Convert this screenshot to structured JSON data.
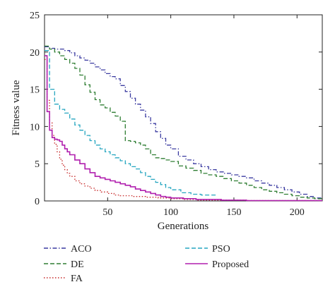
{
  "chart_data": {
    "type": "line",
    "xlabel": "Generations",
    "ylabel": "Fitness value",
    "xlim": [
      0,
      220
    ],
    "ylim": [
      0,
      25
    ],
    "xticks": [
      50,
      100,
      150,
      200
    ],
    "yticks": [
      0,
      5,
      10,
      15,
      20,
      25
    ],
    "grid": false,
    "legend_position": "below plot, two columns",
    "series": [
      {
        "name": "ACO",
        "color": "#3a3aa0",
        "dash": "dash-dot",
        "x": [
          0,
          4,
          8,
          12,
          16,
          20,
          24,
          28,
          32,
          36,
          40,
          44,
          48,
          52,
          56,
          60,
          64,
          68,
          72,
          76,
          80,
          84,
          88,
          92,
          96,
          100,
          106,
          112,
          118,
          124,
          130,
          136,
          142,
          148,
          154,
          160,
          166,
          172,
          178,
          184,
          190,
          196,
          202,
          208,
          214,
          220
        ],
        "y": [
          20.7,
          20.5,
          20.4,
          20.4,
          20.2,
          19.9,
          19.5,
          19.2,
          18.9,
          18.5,
          18.0,
          17.6,
          17.1,
          16.7,
          16.4,
          15.5,
          14.7,
          13.8,
          13.0,
          12.2,
          11.3,
          10.4,
          9.3,
          8.4,
          7.5,
          7.0,
          6.0,
          5.5,
          5.0,
          4.6,
          4.2,
          3.9,
          3.7,
          3.5,
          3.3,
          3.1,
          2.7,
          2.4,
          2.1,
          1.8,
          1.5,
          1.2,
          0.9,
          0.6,
          0.4,
          0.3
        ]
      },
      {
        "name": "DE",
        "color": "#2e7d32",
        "dash": "dashed",
        "x": [
          0,
          4,
          8,
          12,
          16,
          20,
          24,
          28,
          32,
          36,
          40,
          44,
          48,
          52,
          56,
          60,
          64,
          68,
          72,
          76,
          80,
          84,
          88,
          92,
          96,
          100,
          106,
          112,
          118,
          124,
          130,
          136,
          142,
          148,
          154,
          160,
          166,
          172,
          178,
          184,
          190,
          196,
          202,
          208,
          214,
          220
        ],
        "y": [
          20.8,
          20.4,
          20.0,
          19.5,
          19.0,
          18.5,
          17.8,
          16.9,
          15.6,
          14.6,
          13.6,
          12.9,
          12.5,
          11.9,
          11.4,
          10.7,
          8.1,
          8.0,
          7.8,
          7.5,
          7.0,
          6.2,
          5.8,
          5.7,
          5.5,
          5.3,
          4.7,
          4.4,
          4.1,
          3.7,
          3.5,
          3.3,
          3.0,
          2.7,
          2.4,
          2.1,
          1.8,
          1.5,
          1.3,
          1.1,
          0.9,
          0.7,
          0.5,
          0.4,
          0.3,
          0.2
        ]
      },
      {
        "name": "FA",
        "color": "#c62828",
        "dash": "dotted",
        "x": [
          0,
          2,
          4,
          6,
          8,
          10,
          12,
          14,
          16,
          18,
          20,
          24,
          28,
          32,
          36,
          40,
          45,
          50,
          55,
          60,
          70,
          80,
          90,
          100,
          110,
          120,
          140,
          160,
          190,
          220
        ],
        "y": [
          19.0,
          13.5,
          10.5,
          8.8,
          7.6,
          6.6,
          5.6,
          4.8,
          4.2,
          3.7,
          3.3,
          2.7,
          2.3,
          2.0,
          1.7,
          1.4,
          1.2,
          1.0,
          0.8,
          0.7,
          0.6,
          0.5,
          0.4,
          0.3,
          0.2,
          0.1,
          0.1,
          0.05,
          0.05,
          0.05
        ]
      },
      {
        "name": "PSO",
        "color": "#26a6c0",
        "dash": "dashed",
        "x": [
          0,
          4,
          8,
          12,
          16,
          20,
          24,
          28,
          32,
          36,
          40,
          44,
          48,
          52,
          56,
          60,
          64,
          68,
          72,
          76,
          80,
          84,
          88,
          92,
          96,
          100,
          108,
          116,
          124,
          132,
          136
        ],
        "y": [
          20.2,
          15.0,
          13.0,
          12.3,
          11.8,
          11.0,
          10.2,
          9.5,
          8.8,
          8.1,
          7.5,
          7.0,
          6.6,
          6.2,
          5.8,
          5.4,
          5.0,
          4.6,
          4.3,
          3.8,
          3.3,
          2.9,
          2.5,
          2.2,
          1.8,
          1.5,
          1.1,
          0.9,
          0.8,
          0.8,
          0.8
        ]
      },
      {
        "name": "Proposed",
        "color": "#b01fae",
        "dash": "solid",
        "x": [
          0,
          2,
          4,
          6,
          8,
          10,
          12,
          14,
          16,
          18,
          20,
          24,
          28,
          32,
          36,
          40,
          44,
          48,
          52,
          56,
          60,
          64,
          68,
          72,
          76,
          80,
          84,
          88,
          92,
          96,
          100,
          110,
          120,
          140,
          160,
          190,
          220
        ],
        "y": [
          19.5,
          12.0,
          9.5,
          8.5,
          8.3,
          8.2,
          8.0,
          7.5,
          7.0,
          6.6,
          6.2,
          5.5,
          5.0,
          4.3,
          3.8,
          3.3,
          3.1,
          2.9,
          2.7,
          2.5,
          2.3,
          2.1,
          1.9,
          1.6,
          1.4,
          1.2,
          1.0,
          0.8,
          0.6,
          0.5,
          0.4,
          0.3,
          0.2,
          0.1,
          0.05,
          0.05,
          0.05
        ]
      }
    ]
  }
}
